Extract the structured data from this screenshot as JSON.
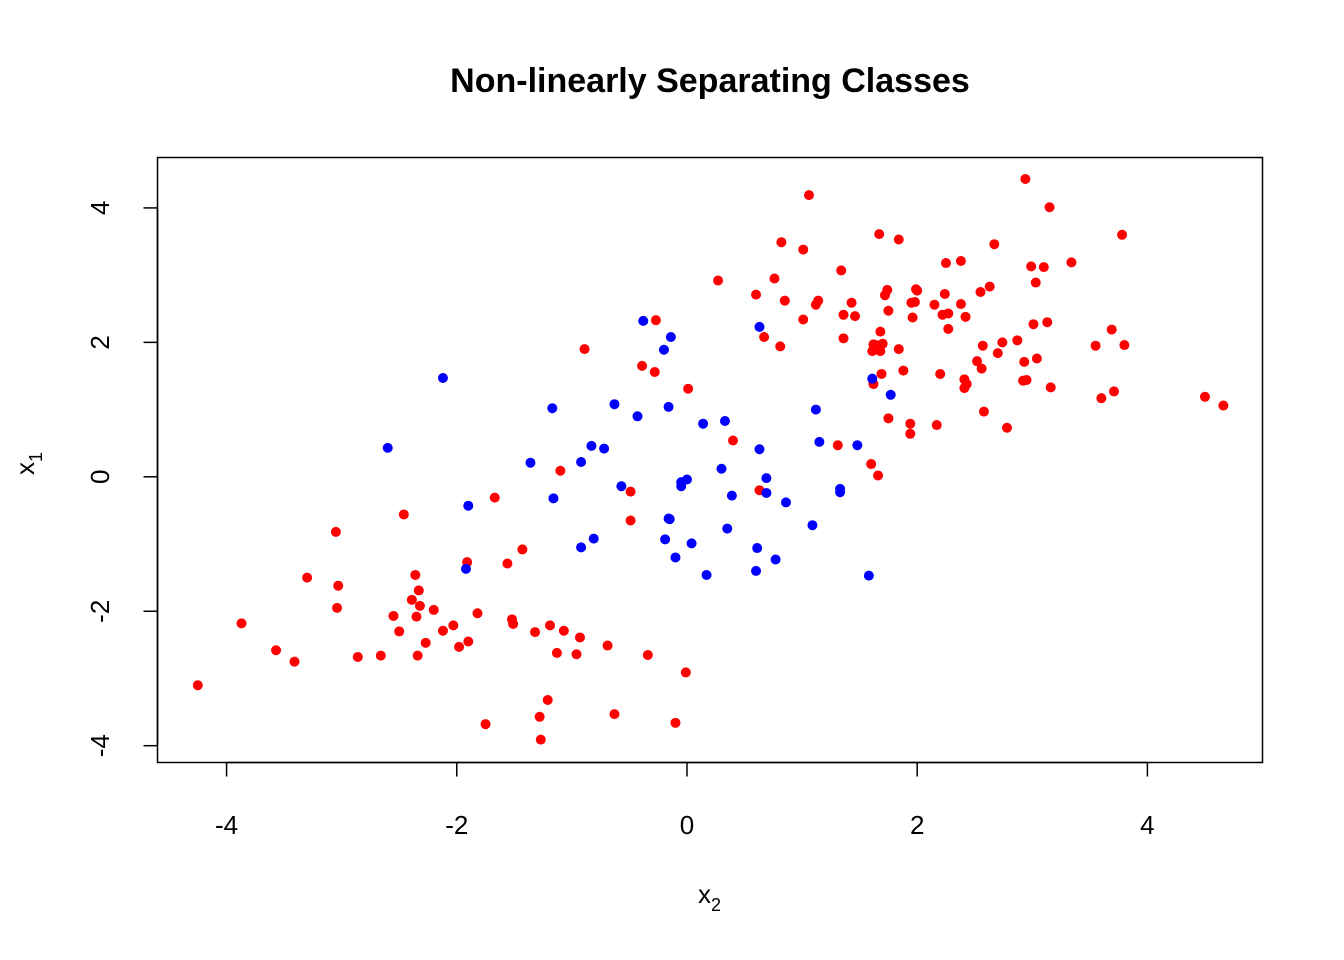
{
  "chart_data": {
    "type": "scatter",
    "title": "Non-linearly Separating Classes",
    "xlabel": "x",
    "xlabel_subscript": "2",
    "ylabel": "x",
    "ylabel_subscript": "1",
    "xlim": [
      -4.6,
      5.0
    ],
    "ylim": [
      -4.25,
      4.75
    ],
    "xticks": [
      -4,
      -2,
      0,
      2,
      4
    ],
    "yticks": [
      -4,
      -2,
      0,
      2,
      4
    ],
    "grid": false,
    "legend": "none",
    "series": [
      {
        "color": "#ff0000",
        "points": [
          [
            -4.25,
            -3.1
          ],
          [
            -3.87,
            -2.18
          ],
          [
            -3.57,
            -2.58
          ],
          [
            -3.41,
            -2.75
          ],
          [
            -3.3,
            -1.5
          ],
          [
            -3.05,
            -0.82
          ],
          [
            -3.04,
            -1.95
          ],
          [
            -3.03,
            -1.62
          ],
          [
            -2.86,
            -2.68
          ],
          [
            -2.66,
            -2.66
          ],
          [
            -2.55,
            -2.07
          ],
          [
            -2.5,
            -2.3
          ],
          [
            -2.46,
            -0.56
          ],
          [
            -2.39,
            -1.83
          ],
          [
            -2.36,
            -1.46
          ],
          [
            -2.35,
            -2.08
          ],
          [
            -2.34,
            -2.66
          ],
          [
            -2.33,
            -1.69
          ],
          [
            -2.32,
            -1.92
          ],
          [
            -2.27,
            -2.47
          ],
          [
            -2.2,
            -1.98
          ],
          [
            -2.12,
            -2.29
          ],
          [
            -2.03,
            -2.21
          ],
          [
            -1.98,
            -2.53
          ],
          [
            -1.91,
            -1.27
          ],
          [
            -1.9,
            -2.45
          ],
          [
            -1.82,
            -2.03
          ],
          [
            -1.75,
            -3.68
          ],
          [
            -1.67,
            -0.31
          ],
          [
            -1.56,
            -1.29
          ],
          [
            -1.52,
            -2.12
          ],
          [
            -1.51,
            -2.19
          ],
          [
            -1.43,
            -1.08
          ],
          [
            -1.32,
            -2.31
          ],
          [
            -1.28,
            -3.57
          ],
          [
            -1.27,
            -3.91
          ],
          [
            -1.21,
            -3.32
          ],
          [
            -1.19,
            -2.21
          ],
          [
            -1.13,
            -2.62
          ],
          [
            -1.1,
            0.09
          ],
          [
            -1.07,
            -2.29
          ],
          [
            -0.96,
            -2.64
          ],
          [
            -0.93,
            -2.39
          ],
          [
            -0.89,
            1.9
          ],
          [
            -0.69,
            -2.51
          ],
          [
            -0.63,
            -3.53
          ],
          [
            -0.49,
            -0.65
          ],
          [
            -0.49,
            -0.22
          ],
          [
            -0.39,
            1.65
          ],
          [
            -0.34,
            -2.65
          ],
          [
            -0.28,
            1.56
          ],
          [
            -0.27,
            2.33
          ],
          [
            -0.1,
            -3.66
          ],
          [
            -0.01,
            -2.91
          ],
          [
            0.01,
            1.31
          ],
          [
            0.27,
            2.92
          ],
          [
            0.4,
            0.54
          ],
          [
            0.6,
            2.71
          ],
          [
            0.63,
            -0.2
          ],
          [
            0.67,
            2.08
          ],
          [
            0.76,
            2.95
          ],
          [
            0.81,
            1.94
          ],
          [
            0.82,
            3.49
          ],
          [
            0.85,
            2.62
          ],
          [
            1.01,
            2.34
          ],
          [
            1.01,
            3.38
          ],
          [
            1.06,
            4.19
          ],
          [
            1.12,
            2.56
          ],
          [
            1.14,
            2.62
          ],
          [
            1.31,
            0.47
          ],
          [
            1.34,
            3.07
          ],
          [
            1.36,
            2.41
          ],
          [
            1.36,
            2.06
          ],
          [
            1.43,
            2.59
          ],
          [
            1.46,
            2.39
          ],
          [
            1.6,
            0.19
          ],
          [
            1.61,
            1.87
          ],
          [
            1.62,
            1.97
          ],
          [
            1.62,
            1.38
          ],
          [
            1.64,
            1.96
          ],
          [
            1.66,
            0.02
          ],
          [
            1.67,
            3.61
          ],
          [
            1.68,
            1.87
          ],
          [
            1.68,
            2.16
          ],
          [
            1.69,
            1.53
          ],
          [
            1.7,
            1.98
          ],
          [
            1.72,
            2.7
          ],
          [
            1.74,
            2.78
          ],
          [
            1.75,
            2.47
          ],
          [
            1.75,
            0.87
          ],
          [
            1.84,
            3.53
          ],
          [
            1.84,
            1.9
          ],
          [
            1.88,
            1.58
          ],
          [
            1.94,
            0.79
          ],
          [
            1.94,
            0.64
          ],
          [
            1.95,
            2.59
          ],
          [
            1.96,
            2.37
          ],
          [
            1.98,
            2.6
          ],
          [
            1.99,
            2.79
          ],
          [
            2.0,
            2.77
          ],
          [
            2.15,
            2.56
          ],
          [
            2.17,
            0.77
          ],
          [
            2.2,
            1.53
          ],
          [
            2.22,
            2.41
          ],
          [
            2.24,
            2.72
          ],
          [
            2.25,
            3.18
          ],
          [
            2.27,
            2.43
          ],
          [
            2.27,
            2.2
          ],
          [
            2.38,
            3.21
          ],
          [
            2.38,
            2.57
          ],
          [
            2.41,
            1.32
          ],
          [
            2.41,
            1.45
          ],
          [
            2.42,
            2.38
          ],
          [
            2.43,
            1.38
          ],
          [
            2.52,
            1.72
          ],
          [
            2.55,
            2.75
          ],
          [
            2.56,
            1.61
          ],
          [
            2.57,
            1.95
          ],
          [
            2.58,
            0.97
          ],
          [
            2.63,
            2.83
          ],
          [
            2.67,
            3.46
          ],
          [
            2.7,
            1.84
          ],
          [
            2.74,
            2.0
          ],
          [
            2.78,
            0.73
          ],
          [
            2.87,
            2.03
          ],
          [
            2.92,
            1.43
          ],
          [
            2.93,
            1.71
          ],
          [
            2.94,
            4.43
          ],
          [
            2.95,
            1.44
          ],
          [
            2.99,
            3.13
          ],
          [
            3.01,
            2.27
          ],
          [
            3.03,
            2.89
          ],
          [
            3.04,
            1.76
          ],
          [
            3.1,
            3.12
          ],
          [
            3.13,
            2.3
          ],
          [
            3.15,
            4.01
          ],
          [
            3.16,
            1.33
          ],
          [
            3.34,
            3.19
          ],
          [
            3.55,
            1.95
          ],
          [
            3.6,
            1.17
          ],
          [
            3.69,
            2.19
          ],
          [
            3.71,
            1.27
          ],
          [
            3.78,
            3.6
          ],
          [
            3.8,
            1.96
          ],
          [
            4.5,
            1.19
          ],
          [
            4.66,
            1.06
          ]
        ]
      },
      {
        "color": "#0000ff",
        "points": [
          [
            -2.6,
            0.43
          ],
          [
            -2.12,
            1.47
          ],
          [
            -1.92,
            -1.37
          ],
          [
            -1.9,
            -0.43
          ],
          [
            -1.36,
            0.21
          ],
          [
            -1.17,
            1.02
          ],
          [
            -1.16,
            -0.32
          ],
          [
            -0.92,
            0.22
          ],
          [
            -0.92,
            -1.05
          ],
          [
            -0.83,
            0.46
          ],
          [
            -0.81,
            -0.92
          ],
          [
            -0.72,
            0.42
          ],
          [
            -0.63,
            1.08
          ],
          [
            -0.57,
            -0.14
          ],
          [
            -0.43,
            0.9
          ],
          [
            -0.38,
            2.32
          ],
          [
            -0.2,
            1.89
          ],
          [
            -0.19,
            -0.93
          ],
          [
            -0.16,
            1.04
          ],
          [
            -0.16,
            -0.62
          ],
          [
            -0.15,
            -0.63
          ],
          [
            -0.14,
            2.08
          ],
          [
            -0.1,
            -1.2
          ],
          [
            -0.05,
            -0.14
          ],
          [
            -0.05,
            -0.08
          ],
          [
            0.0,
            -0.04
          ],
          [
            0.04,
            -0.99
          ],
          [
            0.14,
            0.79
          ],
          [
            0.17,
            -1.46
          ],
          [
            0.3,
            0.12
          ],
          [
            0.33,
            0.83
          ],
          [
            0.35,
            -0.77
          ],
          [
            0.39,
            -0.28
          ],
          [
            0.6,
            -1.4
          ],
          [
            0.61,
            -1.06
          ],
          [
            0.63,
            0.41
          ],
          [
            0.63,
            2.23
          ],
          [
            0.69,
            -0.02
          ],
          [
            0.69,
            -0.24
          ],
          [
            0.77,
            -1.23
          ],
          [
            0.86,
            -0.38
          ],
          [
            1.09,
            -0.72
          ],
          [
            1.12,
            1.0
          ],
          [
            1.15,
            0.52
          ],
          [
            1.33,
            -0.18
          ],
          [
            1.33,
            -0.23
          ],
          [
            1.48,
            0.47
          ],
          [
            1.58,
            -1.47
          ],
          [
            1.61,
            1.46
          ],
          [
            1.77,
            1.22
          ]
        ]
      }
    ]
  }
}
